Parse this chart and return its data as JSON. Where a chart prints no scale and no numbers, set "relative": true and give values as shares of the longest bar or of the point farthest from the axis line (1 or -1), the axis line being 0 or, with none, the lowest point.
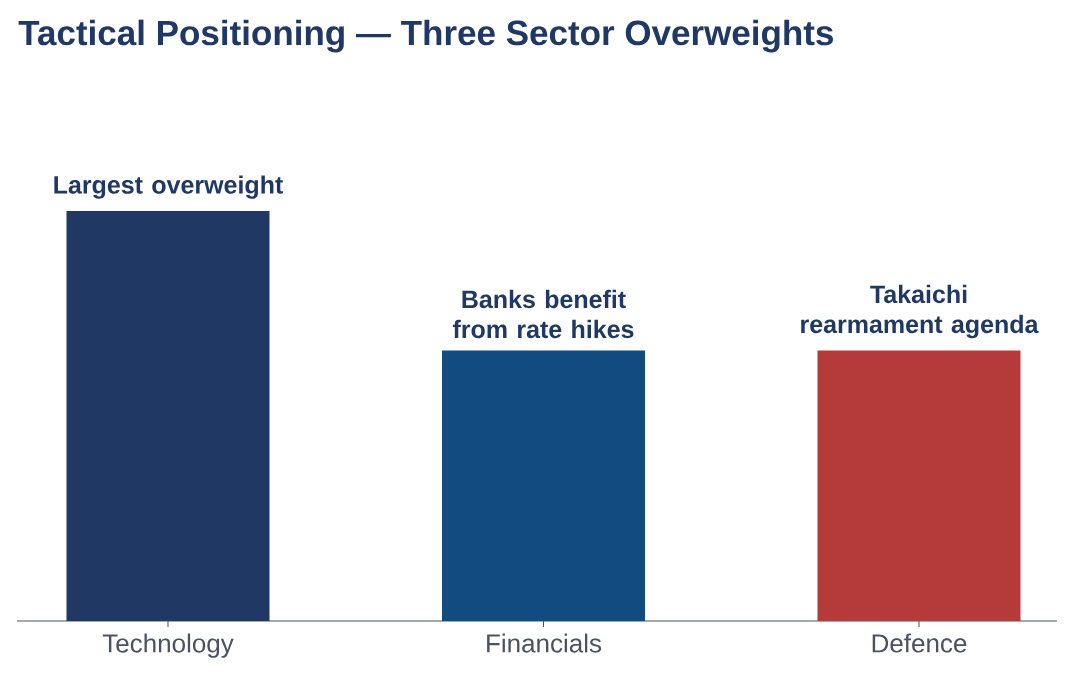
{
  "chart_data": {
    "type": "bar",
    "title": "Tactical Positioning — Three Sector Overweights",
    "categories": [
      "Technology",
      "Financials",
      "Defence"
    ],
    "values": [
      1,
      0.66,
      0.66
    ],
    "colors": [
      "#203864",
      "#114b80",
      "#b53a3a"
    ],
    "relative": true,
    "annotations": [
      {
        "text": "Largest overweight",
        "x": "Technology",
        "y": 1
      },
      {
        "text": "Banks benefit from rate hikes",
        "x": "Financials",
        "y": 0.66
      },
      {
        "text": "Takaichi rearmament agenda",
        "x": "Defence",
        "y": 0.66
      }
    ]
  }
}
